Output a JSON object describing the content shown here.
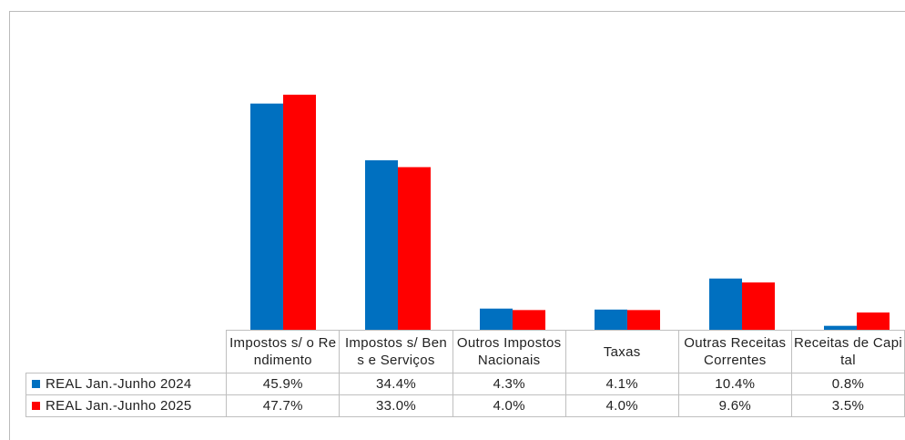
{
  "chart_data": {
    "type": "bar",
    "categories": [
      "Impostos s/ o Rendimento",
      "Impostos s/ Bens e Serviços",
      "Outros Impostos Nacionais",
      "Taxas",
      "Outras Receitas Correntes",
      "Receitas de Capital"
    ],
    "series": [
      {
        "name": "REAL Jan.-Junho 2024",
        "color": "#0070c0",
        "values": [
          45.9,
          34.4,
          4.3,
          4.1,
          10.4,
          0.8
        ],
        "value_labels": [
          "45.9%",
          "34.4%",
          "4.3%",
          "4.1%",
          "10.4%",
          "0.8%"
        ]
      },
      {
        "name": "REAL Jan.-Junho 2025",
        "color": "#ff0000",
        "values": [
          47.7,
          33.0,
          4.0,
          4.0,
          9.6,
          3.5
        ],
        "value_labels": [
          "47.7%",
          "33.0%",
          "4.0%",
          "4.0%",
          "9.6%",
          "3.5%"
        ]
      }
    ]
  }
}
